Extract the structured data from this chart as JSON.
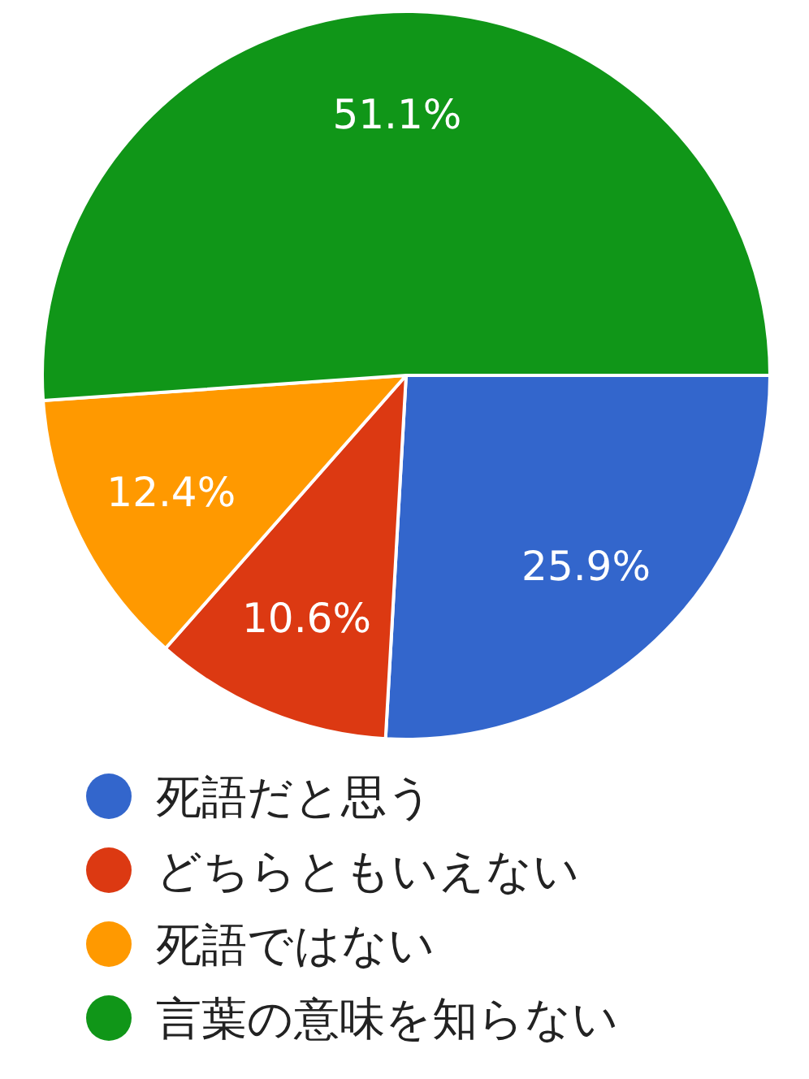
{
  "chart_data": {
    "type": "pie",
    "categories": [
      "死語だと思う",
      "どちらともいえない",
      "死語ではない",
      "言葉の意味を知らない"
    ],
    "values": [
      25.9,
      10.6,
      12.4,
      51.1
    ],
    "colors": [
      "#3366cc",
      "#dc3912",
      "#ff9900",
      "#109618"
    ],
    "value_labels": [
      "25.9%",
      "10.6%",
      "12.4%",
      "51.1%"
    ],
    "legend": "bottom"
  }
}
